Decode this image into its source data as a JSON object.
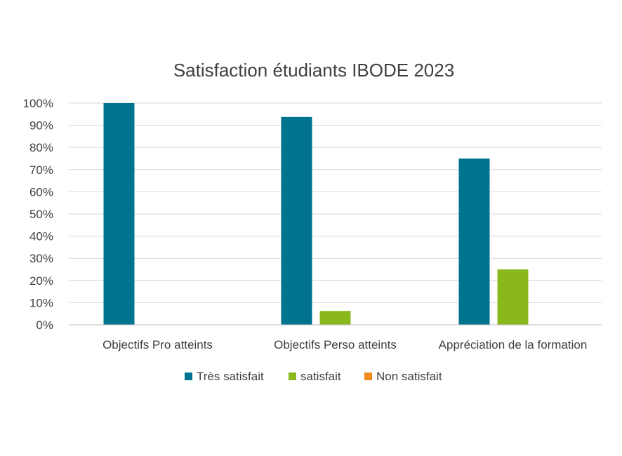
{
  "chart_data": {
    "type": "bar",
    "title": "Satisfaction étudiants IBODE 2023",
    "xlabel": "",
    "ylabel": "",
    "ylim": [
      0,
      1
    ],
    "y_ticks": [
      "0%",
      "10%",
      "20%",
      "30%",
      "40%",
      "50%",
      "60%",
      "70%",
      "80%",
      "90%",
      "100%"
    ],
    "y_tick_values": [
      0,
      0.1,
      0.2,
      0.3,
      0.4,
      0.5,
      0.6,
      0.7,
      0.8,
      0.9,
      1.0
    ],
    "categories": [
      "Objectifs Pro atteints",
      "Objectifs Perso atteints",
      "Appréciation de la formation"
    ],
    "series": [
      {
        "name": "Très satisfait",
        "color": "#00738f",
        "values": [
          1.0,
          0.9375,
          0.75
        ]
      },
      {
        "name": "satisfait",
        "color": "#8ab81c",
        "values": [
          0,
          0.0625,
          0.25
        ]
      },
      {
        "name": "Non satisfait",
        "color": "#f28a1e",
        "values": [
          0,
          0,
          0
        ]
      }
    ],
    "grid": true,
    "legend_position": "bottom"
  }
}
